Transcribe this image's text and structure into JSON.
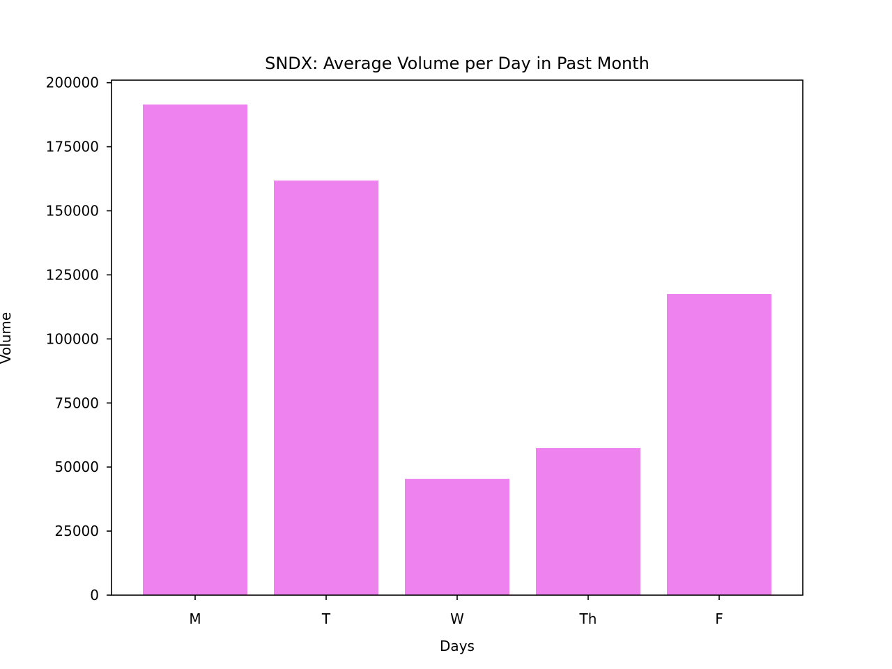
{
  "chart_data": {
    "type": "bar",
    "title": "SNDX: Average Volume per Day in Past Month",
    "xlabel": "Days",
    "ylabel": "Volume",
    "categories": [
      "M",
      "T",
      "W",
      "Th",
      "F"
    ],
    "values": [
      191500,
      161800,
      45400,
      57400,
      117500
    ],
    "ylim": [
      0,
      201000
    ],
    "yticks": [
      0,
      25000,
      50000,
      75000,
      100000,
      125000,
      150000,
      175000,
      200000
    ],
    "ytick_labels": [
      "0",
      "25000",
      "50000",
      "75000",
      "100000",
      "125000",
      "150000",
      "175000",
      "200000"
    ],
    "bar_color": "#ee82ee",
    "grid": false,
    "legend": "none"
  }
}
